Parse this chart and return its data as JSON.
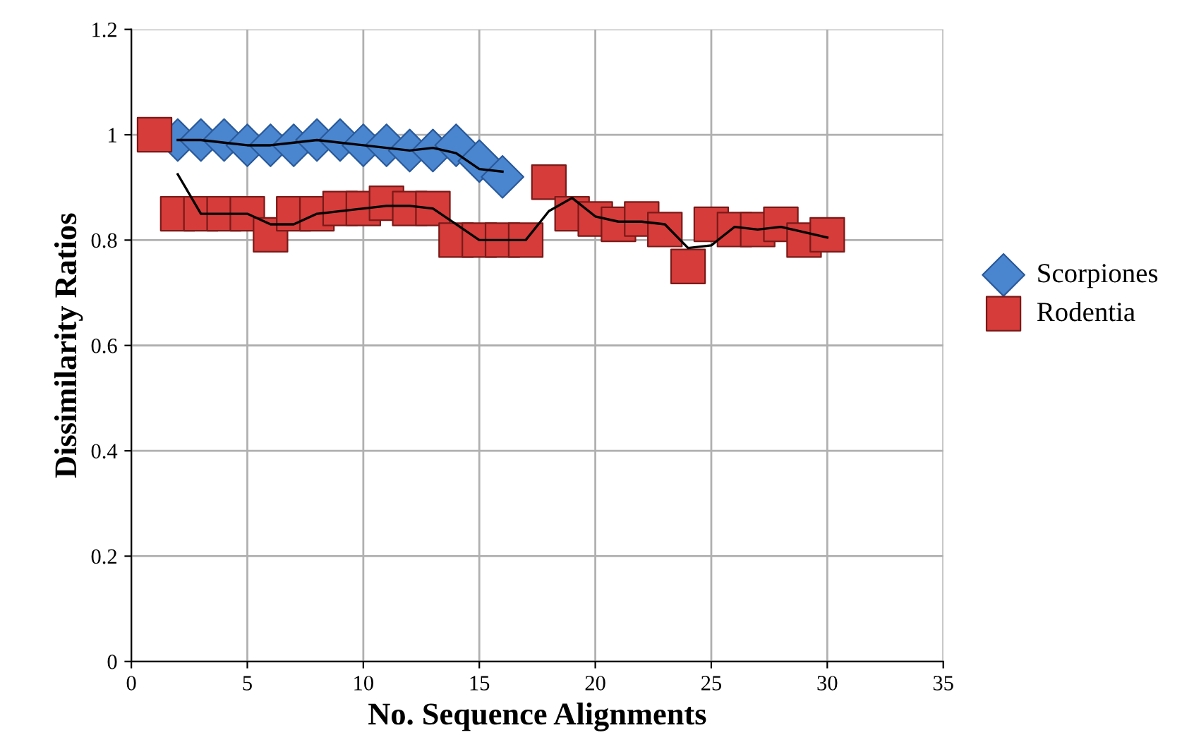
{
  "chart_data": {
    "type": "scatter",
    "xlabel": "No. Sequence Alignments",
    "ylabel": "Dissimilarity Ratios",
    "xlim": [
      0,
      35
    ],
    "xticks": [
      0,
      5,
      10,
      15,
      20,
      25,
      30,
      35
    ],
    "ylim": [
      0,
      1.2
    ],
    "yticks": [
      0,
      0.2,
      0.4,
      0.6,
      0.8,
      1,
      1.2
    ],
    "grid": true,
    "legend": "right",
    "series": [
      {
        "name": "Scorpiones",
        "marker": "diamond",
        "color": "#4a86d0",
        "x": [
          2,
          3,
          4,
          5,
          6,
          7,
          8,
          9,
          10,
          11,
          12,
          13,
          14,
          15,
          16
        ],
        "values": [
          0.99,
          0.99,
          0.99,
          0.98,
          0.98,
          0.98,
          0.99,
          0.99,
          0.98,
          0.98,
          0.97,
          0.97,
          0.98,
          0.95,
          0.92
        ]
      },
      {
        "name": "Rodentia",
        "marker": "square",
        "color": "#d63c3a",
        "x": [
          1,
          2,
          3,
          4,
          5,
          6,
          7,
          8,
          9,
          10,
          11,
          12,
          13,
          14,
          15,
          16,
          17,
          18,
          19,
          20,
          21,
          22,
          23,
          24,
          25,
          26,
          27,
          28,
          29,
          30
        ],
        "values": [
          1.0,
          0.85,
          0.85,
          0.85,
          0.85,
          0.81,
          0.85,
          0.85,
          0.86,
          0.86,
          0.87,
          0.86,
          0.86,
          0.8,
          0.8,
          0.8,
          0.8,
          0.91,
          0.85,
          0.84,
          0.83,
          0.84,
          0.82,
          0.75,
          0.83,
          0.82,
          0.82,
          0.83,
          0.8,
          0.81
        ]
      },
      {
        "type": "line",
        "color": "#000000",
        "line_style": "solid",
        "x": [
          2,
          3,
          4,
          5,
          6,
          7,
          8,
          9,
          10,
          11,
          12,
          13,
          14,
          15,
          16
        ],
        "values": [
          0.99,
          0.99,
          0.985,
          0.98,
          0.98,
          0.985,
          0.99,
          0.985,
          0.98,
          0.975,
          0.97,
          0.975,
          0.965,
          0.935,
          0.93
        ]
      },
      {
        "type": "line",
        "color": "#000000",
        "line_style": "solid",
        "x": [
          2,
          3,
          4,
          5,
          6,
          7,
          8,
          9,
          10,
          11,
          12,
          13,
          14,
          15,
          16,
          17,
          18,
          19,
          20,
          21,
          22,
          23,
          24,
          25,
          26,
          27,
          28,
          29,
          30
        ],
        "values": [
          0.925,
          0.85,
          0.85,
          0.85,
          0.83,
          0.83,
          0.85,
          0.855,
          0.86,
          0.865,
          0.865,
          0.86,
          0.83,
          0.8,
          0.8,
          0.8,
          0.855,
          0.88,
          0.845,
          0.835,
          0.835,
          0.83,
          0.785,
          0.79,
          0.825,
          0.82,
          0.825,
          0.815,
          0.805
        ]
      }
    ]
  }
}
